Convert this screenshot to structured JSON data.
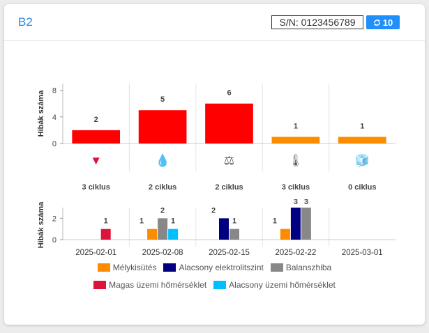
{
  "card": {
    "title": "B2",
    "serial": "S/N: 0123456789",
    "badge_count": "10",
    "badge_icon": "refresh-icon"
  },
  "colors": {
    "red": "#ff0000",
    "orange": "#fb8c00",
    "navy": "#000080",
    "gray": "#888888",
    "crimson": "#dc143c",
    "cyan": "#00bfff",
    "title_blue": "#2b8ad8",
    "badge_blue": "#1e8ffb"
  },
  "chart_data": [
    {
      "type": "bar",
      "ylabel": "Hibák száma",
      "ylim": [
        0,
        9
      ],
      "yticks": [
        0,
        4,
        8
      ],
      "categories": [
        "▼",
        "💧",
        "⚖",
        "🌡",
        "🧊"
      ],
      "icon_names": [
        "triangle-down-icon",
        "water-drop-icon",
        "balance-scale-icon",
        "thermometer-icon",
        "ice-cube-icon"
      ],
      "values": [
        2,
        5,
        6,
        1,
        1
      ],
      "bar_colors": [
        "#ff0000",
        "#ff0000",
        "#ff0000",
        "#fb8c00",
        "#fb8c00"
      ],
      "cycle_labels": [
        "3 ciklus",
        "2 ciklus",
        "2 ciklus",
        "3 ciklus",
        "0 ciklus"
      ],
      "grid": true
    },
    {
      "type": "bar",
      "ylabel": "Hibák száma",
      "ylim": [
        0,
        3
      ],
      "yticks": [
        0,
        2
      ],
      "categories": [
        "2025-02-01",
        "2025-02-08",
        "2025-02-15",
        "2025-02-22",
        "2025-03-01"
      ],
      "series": [
        {
          "name": "Mélykisütés",
          "color": "#fb8c00",
          "values": [
            0,
            1,
            0,
            1,
            0
          ]
        },
        {
          "name": "Alacsony elektrolitszint",
          "color": "#000080",
          "values": [
            0,
            0,
            2,
            3,
            0
          ]
        },
        {
          "name": "Balanszhiba",
          "color": "#888888",
          "values": [
            0,
            2,
            1,
            3,
            0
          ]
        },
        {
          "name": "Magas üzemi hőmérséklet",
          "color": "#dc143c",
          "values": [
            1,
            0,
            0,
            0,
            0
          ]
        },
        {
          "name": "Alacsony üzemi hőmérséklet",
          "color": "#00bfff",
          "values": [
            0,
            1,
            0,
            0,
            0
          ]
        }
      ],
      "legend_rows": [
        [
          "Mélykisütés",
          "Alacsony elektrolitszint",
          "Balanszhiba"
        ],
        [
          "Magas üzemi hőmérséklet",
          "Alacsony üzemi hőmérséklet"
        ]
      ],
      "legend_position": "bottom",
      "grid": true
    }
  ]
}
